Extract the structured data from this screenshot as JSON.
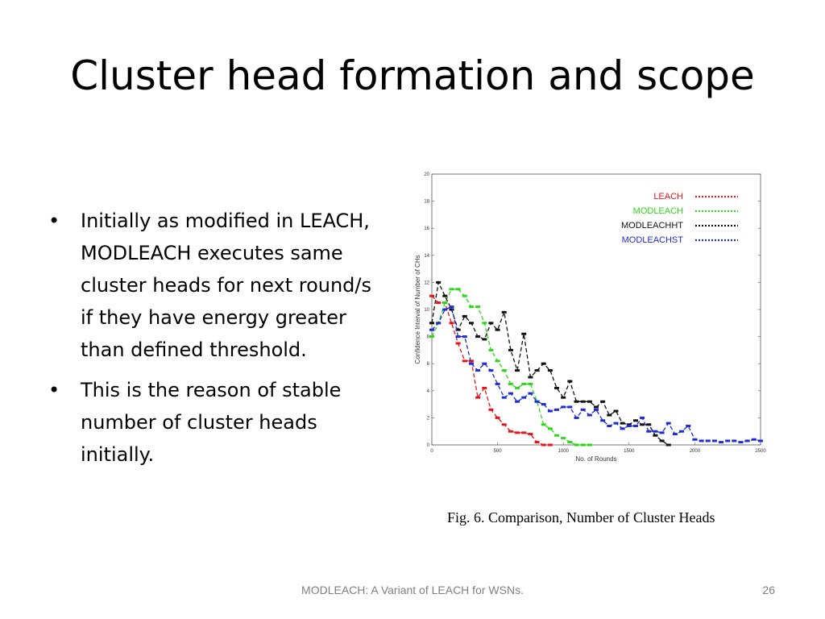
{
  "slide": {
    "title": "Cluster head formation and scope",
    "bullets": [
      "Initially as modified in LEACH, MODLEACH executes same cluster heads for next round/s if they have energy greater than defined threshold.",
      "This is the reason of stable number of cluster heads initially."
    ],
    "figure_caption": "Fig. 6.   Comparison, Number of Cluster Heads",
    "footer": "MODLEACH: A Variant of LEACH for WSNs.",
    "page_number": "26"
  },
  "chart_data": {
    "type": "line",
    "xlabel": "No. of Rounds",
    "ylabel": "Confidence Interval of Number of CHs",
    "xlim": [
      0,
      2500
    ],
    "ylim": [
      0,
      20
    ],
    "x_ticks": [
      0,
      500,
      1000,
      1500,
      2000,
      2500
    ],
    "y_ticks": [
      0,
      2,
      4,
      6,
      8,
      10,
      12,
      14,
      16,
      18,
      20
    ],
    "legend_position": "top-right",
    "series": [
      {
        "name": "LEACH",
        "color": "#e8141b",
        "x": [
          0,
          50,
          100,
          150,
          200,
          250,
          300,
          350,
          400,
          450,
          500,
          550,
          600,
          650,
          700,
          750,
          800,
          850,
          900
        ],
        "y": [
          11,
          10.5,
          10.5,
          9,
          7.5,
          6.2,
          6.2,
          3.5,
          4.2,
          2.6,
          2,
          1.5,
          1.0,
          0.9,
          0.9,
          0.8,
          0.2,
          0,
          0
        ]
      },
      {
        "name": "MODLEACH",
        "color": "#2cd819",
        "x": [
          0,
          50,
          100,
          150,
          200,
          250,
          300,
          350,
          400,
          450,
          500,
          550,
          600,
          650,
          700,
          750,
          800,
          850,
          900,
          950,
          1000,
          1050,
          1100,
          1150,
          1200
        ],
        "y": [
          8,
          9,
          10.5,
          11.5,
          11.5,
          11,
          10.2,
          10.2,
          9,
          7,
          6.2,
          5.5,
          4.5,
          4.2,
          4.5,
          4.5,
          3.2,
          1.5,
          1.2,
          0.7,
          0.5,
          0.2,
          0,
          0,
          0
        ]
      },
      {
        "name": "MODLEACHHT",
        "color": "#111111",
        "x": [
          0,
          50,
          100,
          150,
          200,
          250,
          300,
          350,
          400,
          450,
          500,
          550,
          600,
          650,
          700,
          750,
          800,
          850,
          900,
          950,
          1000,
          1050,
          1100,
          1150,
          1200,
          1250,
          1300,
          1350,
          1400,
          1450,
          1500,
          1550,
          1600,
          1650,
          1700,
          1750,
          1800
        ],
        "y": [
          9,
          12,
          11,
          10,
          8.5,
          9.5,
          9,
          8,
          7.8,
          9,
          8.5,
          9.8,
          7,
          5.5,
          8.2,
          5,
          5.5,
          6,
          5.5,
          4.2,
          3.5,
          4.7,
          3.2,
          3.2,
          3.2,
          2.8,
          3.2,
          2.2,
          2.5,
          1.6,
          1.5,
          1.8,
          1.5,
          1.5,
          0.7,
          0.3,
          0
        ]
      },
      {
        "name": "MODLEACHST",
        "color": "#1f2bd6",
        "x": [
          0,
          50,
          100,
          150,
          200,
          250,
          300,
          350,
          400,
          450,
          500,
          550,
          600,
          650,
          700,
          750,
          800,
          850,
          900,
          950,
          1000,
          1050,
          1100,
          1150,
          1200,
          1250,
          1300,
          1350,
          1400,
          1450,
          1500,
          1550,
          1600,
          1650,
          1700,
          1750,
          1800,
          1850,
          1900,
          1950,
          2000,
          2050,
          2100,
          2150,
          2200,
          2250,
          2300,
          2350,
          2400,
          2450,
          2500
        ],
        "y": [
          8.5,
          9,
          10,
          10.2,
          8,
          8,
          6,
          5.5,
          6,
          5.5,
          4.5,
          3.5,
          3.8,
          3.2,
          3.5,
          3.8,
          3.2,
          3.0,
          2.5,
          2.6,
          2.8,
          2.8,
          2.0,
          2.6,
          2.2,
          2.6,
          1.8,
          1.4,
          1.6,
          1.2,
          1.4,
          1.4,
          2.0,
          1.0,
          1.0,
          0.9,
          1.6,
          0.8,
          1.0,
          1.4,
          0.4,
          0.3,
          0.3,
          0.3,
          0.2,
          0.3,
          0.3,
          0.2,
          0.3,
          0.4,
          0.3
        ]
      }
    ]
  }
}
